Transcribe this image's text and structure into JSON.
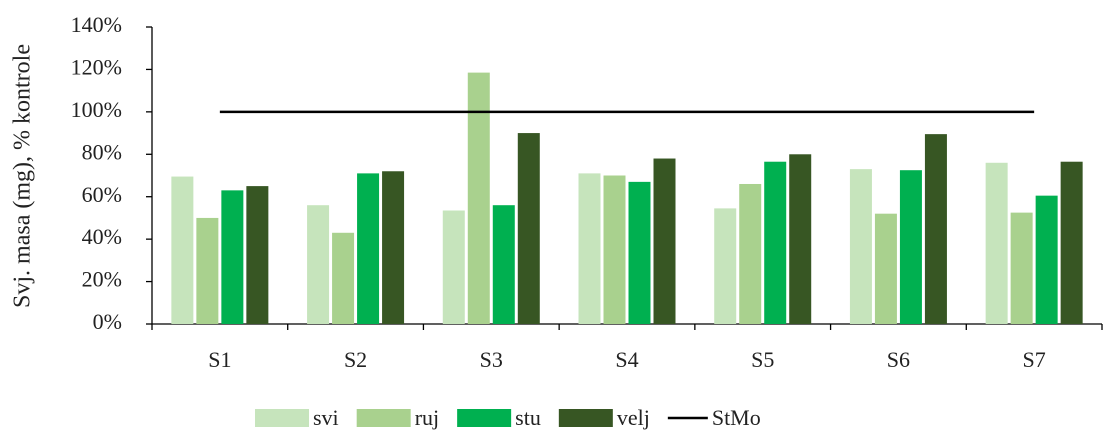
{
  "chart_data": {
    "type": "bar",
    "y_label": "Svj. masa (mg), % kontrole",
    "categories": [
      "S1",
      "S2",
      "S3",
      "S4",
      "S5",
      "S6",
      "S7"
    ],
    "series": [
      {
        "name": "svi",
        "color": "#c6e4bc",
        "values": [
          69.5,
          56,
          53.5,
          71,
          54.5,
          73,
          76
        ]
      },
      {
        "name": "ruj",
        "color": "#a9d18e",
        "values": [
          50,
          43,
          118.5,
          70,
          66,
          52,
          52.5
        ]
      },
      {
        "name": "stu",
        "color": "#00b050",
        "values": [
          63,
          71,
          56,
          67,
          76.5,
          72.5,
          60.5
        ]
      },
      {
        "name": "velj",
        "color": "#375623",
        "values": [
          65,
          72,
          90,
          78,
          80,
          89.5,
          76.5
        ]
      },
      {
        "name": "StMo",
        "type": "line",
        "color": "#000000",
        "values": [
          100,
          100,
          100,
          100,
          100,
          100,
          100
        ]
      }
    ],
    "ylim": [
      0,
      140
    ],
    "yticks": [
      {
        "value": 0,
        "label": "0%"
      },
      {
        "value": 20,
        "label": "20%"
      },
      {
        "value": 40,
        "label": "40%"
      },
      {
        "value": 60,
        "label": "60%"
      },
      {
        "value": 80,
        "label": "80%"
      },
      {
        "value": 100,
        "label": "100%"
      },
      {
        "value": 120,
        "label": "120%"
      },
      {
        "value": 140,
        "label": "140%"
      }
    ],
    "legend": "bottom"
  }
}
